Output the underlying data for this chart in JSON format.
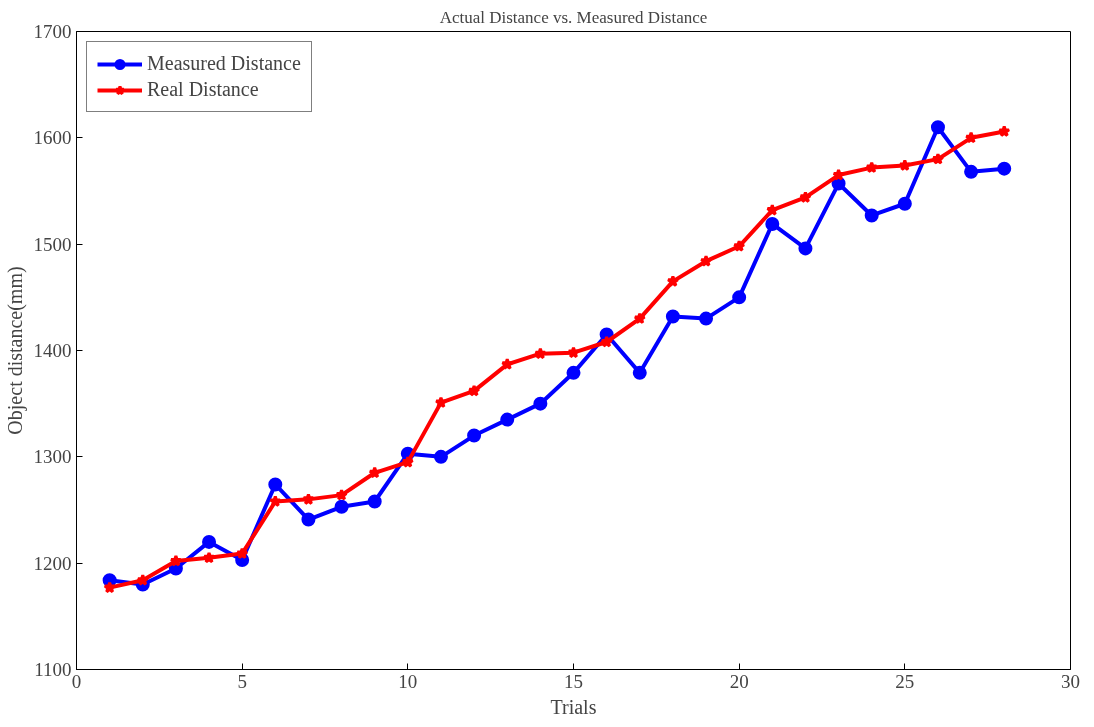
{
  "chart_data": {
    "type": "line",
    "title": "Actual Distance vs. Measured Distance",
    "xlabel": "Trials",
    "ylabel": "Object distance(mm)",
    "x": [
      1,
      2,
      3,
      4,
      5,
      6,
      7,
      8,
      9,
      10,
      11,
      12,
      13,
      14,
      15,
      16,
      17,
      18,
      19,
      20,
      21,
      22,
      23,
      24,
      25,
      26,
      27,
      28
    ],
    "series": [
      {
        "name": "Measured Distance",
        "color": "#0000ff",
        "marker": "circle",
        "values": [
          1184,
          1180,
          1195,
          1220,
          1203,
          1274,
          1241,
          1253,
          1258,
          1303,
          1300,
          1320,
          1335,
          1350,
          1379,
          1415,
          1379,
          1432,
          1430,
          1450,
          1519,
          1496,
          1557,
          1527,
          1538,
          1610,
          1568,
          1571
        ]
      },
      {
        "name": "Real Distance",
        "color": "#ff0000",
        "marker": "star",
        "values": [
          1177,
          1184,
          1202,
          1205,
          1209,
          1258,
          1260,
          1264,
          1285,
          1295,
          1351,
          1362,
          1387,
          1397,
          1398,
          1408,
          1430,
          1465,
          1484,
          1498,
          1532,
          1544,
          1565,
          1572,
          1574,
          1580,
          1600,
          1606
        ]
      }
    ],
    "xlim": [
      0,
      30
    ],
    "xticks": [
      0,
      5,
      10,
      15,
      20,
      25,
      30
    ],
    "ylim": [
      1100,
      1700
    ],
    "yticks": [
      1100,
      1200,
      1300,
      1400,
      1500,
      1600,
      1700
    ],
    "legend": "top left",
    "line_style": "solid"
  }
}
